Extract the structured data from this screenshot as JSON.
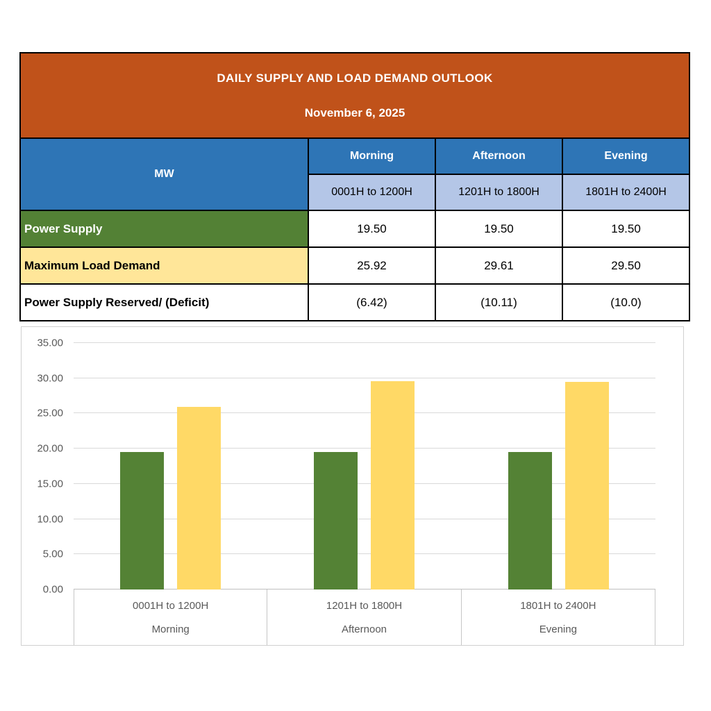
{
  "table": {
    "title": "DAILY SUPPLY AND LOAD DEMAND OUTLOOK",
    "date": "November 6, 2025",
    "corner_label": "MW",
    "periods": [
      {
        "name": "Morning",
        "hours": "0001H to 1200H"
      },
      {
        "name": "Afternoon",
        "hours": "1201H to 1800H"
      },
      {
        "name": "Evening",
        "hours": "1801H to 2400H"
      }
    ],
    "rows": [
      {
        "label": "Power Supply",
        "values": [
          "19.50",
          "19.50",
          "19.50"
        ]
      },
      {
        "label": "Maximum Load Demand",
        "values": [
          "25.92",
          "29.61",
          "29.50"
        ]
      },
      {
        "label": "Power Supply Reserved/ (Deficit)",
        "values": [
          "(6.42)",
          "(10.11)",
          "(10.0)"
        ]
      }
    ]
  },
  "chart_data": {
    "type": "bar",
    "categories": [
      "0001H to 1200H",
      "1201H to 1800H",
      "1801H to 2400H"
    ],
    "category_sublabels": [
      "Morning",
      "Afternoon",
      "Evening"
    ],
    "series": [
      {
        "name": "Power Supply",
        "color": "#548235",
        "values": [
          19.5,
          19.5,
          19.5
        ]
      },
      {
        "name": "Maximum Load Demand",
        "color": "#FFD966",
        "values": [
          25.92,
          29.61,
          29.5
        ]
      }
    ],
    "title": "",
    "xlabel": "",
    "ylabel": "",
    "ylim": [
      0,
      35
    ],
    "ytick_step": 5,
    "grid": true,
    "legend_position": "none"
  },
  "colors": {
    "table_title_bg": "#C0521A",
    "table_header_bg": "#2E75B6",
    "table_subheader_bg": "#B4C6E7",
    "supply_row_bg": "#538135",
    "demand_row_bg": "#FFE699",
    "grid_line": "#d9d9d9"
  }
}
